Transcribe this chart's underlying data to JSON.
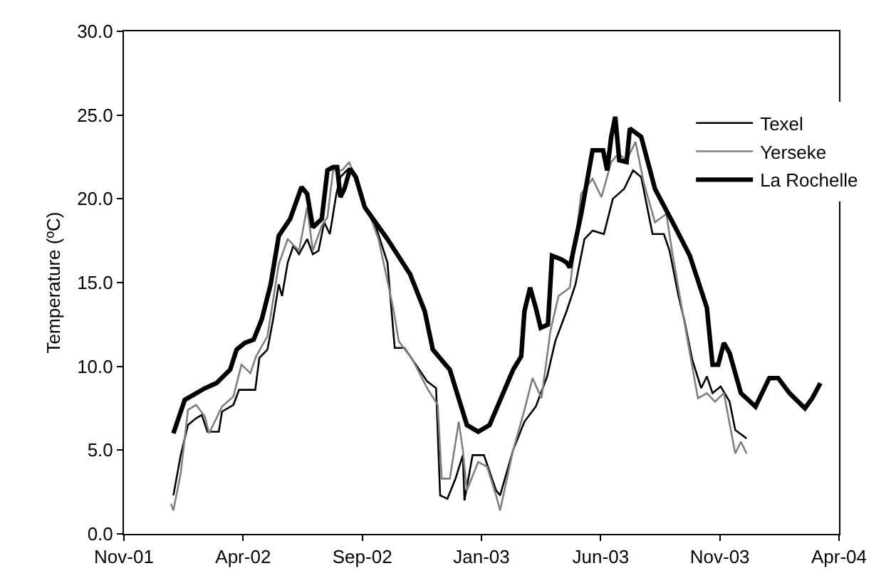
{
  "chart_data": {
    "type": "line",
    "ylabel": "Temperature (ºC)",
    "xlim": [
      "2001-11-12",
      "2004-04-12"
    ],
    "xticks": [
      {
        "value": "2001-11-12",
        "label": "Nov-01"
      },
      {
        "value": "2002-04-08",
        "label": "Apr-02"
      },
      {
        "value": "2002-09-02",
        "label": "Sep-02"
      },
      {
        "value": "2003-01-27",
        "label": "Jan-03"
      },
      {
        "value": "2003-06-23",
        "label": "Jun-03"
      },
      {
        "value": "2003-11-17",
        "label": "Nov-03"
      },
      {
        "value": "2004-04-12",
        "label": "Apr-04"
      }
    ],
    "ylim": [
      0,
      30
    ],
    "yticks": [
      {
        "value": 0,
        "label": "0.0"
      },
      {
        "value": 5,
        "label": "5.0"
      },
      {
        "value": 10,
        "label": "10.0"
      },
      {
        "value": 15,
        "label": "15.0"
      },
      {
        "value": 20,
        "label": "20.0"
      },
      {
        "value": 25,
        "label": "25.0"
      },
      {
        "value": 30,
        "label": "30.0"
      }
    ],
    "grid": false,
    "legend": "top right",
    "marker": "none",
    "line_style": "solid",
    "series": [
      {
        "name": "Texel",
        "color": "#000000",
        "x": [
          "2002-01-12",
          "2002-01-21",
          "2002-01-30",
          "2002-02-09",
          "2002-02-16",
          "2002-02-23",
          "2002-03-09",
          "2002-03-13",
          "2002-03-27",
          "2002-04-03",
          "2002-04-23",
          "2002-04-28",
          "2002-05-08",
          "2002-05-15",
          "2002-05-22",
          "2002-05-26",
          "2002-06-02",
          "2002-06-09",
          "2002-06-16",
          "2002-06-26",
          "2002-07-03",
          "2002-07-10",
          "2002-07-17",
          "2002-07-24",
          "2002-08-01",
          "2002-08-06",
          "2002-08-16",
          "2002-08-25",
          "2002-09-05",
          "2002-09-19",
          "2002-10-03",
          "2002-10-12",
          "2002-10-24",
          "2002-11-07",
          "2002-11-21",
          "2002-12-02",
          "2002-12-07",
          "2002-12-16",
          "2002-12-26",
          "2003-01-04",
          "2003-01-06",
          "2003-01-16",
          "2003-01-30",
          "2003-02-14",
          "2003-02-19",
          "2003-03-07",
          "2003-03-21",
          "2003-04-04",
          "2003-04-18",
          "2003-04-28",
          "2003-05-12",
          "2003-05-23",
          "2003-06-03",
          "2003-06-13",
          "2003-06-27",
          "2003-07-08",
          "2003-07-22",
          "2003-08-02",
          "2003-08-12",
          "2003-08-19",
          "2003-08-26",
          "2003-09-09",
          "2003-09-16",
          "2003-09-27",
          "2003-10-04",
          "2003-10-14",
          "2003-10-25",
          "2003-11-01",
          "2003-11-08",
          "2003-11-18",
          "2003-11-29",
          "2003-12-06",
          "2003-12-20"
        ],
        "values": [
          2.3,
          4.7,
          6.5,
          6.9,
          7.1,
          6.1,
          6.1,
          7.3,
          7.7,
          8.6,
          8.6,
          10.5,
          11.0,
          12.8,
          14.9,
          14.2,
          16.2,
          17.2,
          16.7,
          17.6,
          16.7,
          16.9,
          18.6,
          17.9,
          20.3,
          21.3,
          21.8,
          21.3,
          19.6,
          18.3,
          16.2,
          11.1,
          11.1,
          10.1,
          9.1,
          8.7,
          2.3,
          2.1,
          3.3,
          4.7,
          2.0,
          4.7,
          4.7,
          2.6,
          2.3,
          5.0,
          6.7,
          7.6,
          9.4,
          11.5,
          13.3,
          14.9,
          17.6,
          18.1,
          17.9,
          20.0,
          20.6,
          21.7,
          21.3,
          19.6,
          17.9,
          17.9,
          16.9,
          14.2,
          12.8,
          10.4,
          8.7,
          9.4,
          8.4,
          8.8,
          7.9,
          6.2,
          5.7
        ]
      },
      {
        "name": "Yerseke",
        "color": "#808080",
        "x": [
          "2002-01-09",
          "2002-01-12",
          "2002-01-21",
          "2002-01-30",
          "2002-02-09",
          "2002-02-20",
          "2002-02-25",
          "2002-03-13",
          "2002-03-27",
          "2002-04-06",
          "2002-04-17",
          "2002-04-24",
          "2002-05-08",
          "2002-05-22",
          "2002-06-02",
          "2002-06-16",
          "2002-06-26",
          "2002-07-03",
          "2002-07-14",
          "2002-07-21",
          "2002-07-28",
          "2002-08-08",
          "2002-08-17",
          "2002-08-28",
          "2002-09-12",
          "2002-09-22",
          "2002-10-10",
          "2002-10-17",
          "2002-11-03",
          "2002-11-21",
          "2002-12-04",
          "2002-12-09",
          "2002-12-19",
          "2002-12-30",
          "2003-01-04",
          "2003-01-09",
          "2003-01-23",
          "2003-02-03",
          "2003-02-14",
          "2003-02-19",
          "2003-03-07",
          "2003-03-21",
          "2003-03-31",
          "2003-04-11",
          "2003-04-22",
          "2003-05-02",
          "2003-05-16",
          "2003-05-30",
          "2003-06-13",
          "2003-06-24",
          "2003-07-06",
          "2003-07-15",
          "2003-07-25",
          "2003-08-05",
          "2003-08-15",
          "2003-08-29",
          "2003-09-12",
          "2003-09-19",
          "2003-09-30",
          "2003-10-11",
          "2003-10-21",
          "2003-11-01",
          "2003-11-11",
          "2003-11-22",
          "2003-12-06",
          "2003-12-13",
          "2003-12-20"
        ],
        "values": [
          1.8,
          1.4,
          3.6,
          7.4,
          7.7,
          7.0,
          6.0,
          7.6,
          8.2,
          10.1,
          9.6,
          10.6,
          11.8,
          16.1,
          17.6,
          16.9,
          19.5,
          16.9,
          18.4,
          18.9,
          21.7,
          21.7,
          22.2,
          20.6,
          18.9,
          17.6,
          13.5,
          11.5,
          10.4,
          8.7,
          7.7,
          3.3,
          3.3,
          6.7,
          5.0,
          2.6,
          4.3,
          4.0,
          2.3,
          1.4,
          5.0,
          7.4,
          9.3,
          8.1,
          12.1,
          14.2,
          14.7,
          20.3,
          21.2,
          20.1,
          22.2,
          22.7,
          22.3,
          23.4,
          21.0,
          18.6,
          19.1,
          16.9,
          13.8,
          10.8,
          8.1,
          8.4,
          7.9,
          8.4,
          4.8,
          5.5,
          4.8
        ]
      },
      {
        "name": "La Rochelle",
        "color": "#000000",
        "x": [
          "2002-01-12",
          "2002-01-26",
          "2002-02-20",
          "2002-03-06",
          "2002-03-23",
          "2002-03-31",
          "2002-04-10",
          "2002-04-21",
          "2002-05-01",
          "2002-05-12",
          "2002-05-22",
          "2002-06-05",
          "2002-06-19",
          "2002-06-26",
          "2002-07-03",
          "2002-07-14",
          "2002-07-21",
          "2002-07-28",
          "2002-08-02",
          "2002-08-06",
          "2002-08-11",
          "2002-08-18",
          "2002-08-25",
          "2002-09-05",
          "2002-10-03",
          "2002-10-31",
          "2002-11-18",
          "2002-11-28",
          "2002-12-19",
          "2003-01-09",
          "2003-01-23",
          "2003-02-06",
          "2003-03-07",
          "2003-03-17",
          "2003-03-21",
          "2003-03-28",
          "2003-04-04",
          "2003-04-10",
          "2003-04-19",
          "2003-04-24",
          "2003-05-05",
          "2003-05-12",
          "2003-05-16",
          "2003-05-30",
          "2003-06-13",
          "2003-06-26",
          "2003-07-01",
          "2003-07-06",
          "2003-07-11",
          "2003-07-16",
          "2003-07-25",
          "2003-07-29",
          "2003-08-12",
          "2003-08-29",
          "2003-09-23",
          "2003-10-11",
          "2003-11-01",
          "2003-11-08",
          "2003-11-15",
          "2003-11-22",
          "2003-11-29",
          "2003-12-13",
          "2003-12-31",
          "2004-01-17",
          "2004-01-28",
          "2004-02-11",
          "2004-03-01",
          "2004-03-10",
          "2004-03-20"
        ],
        "values": [
          6.0,
          8.0,
          8.7,
          9.0,
          9.8,
          11.0,
          11.4,
          11.6,
          12.8,
          14.9,
          17.8,
          18.8,
          20.7,
          20.3,
          18.3,
          18.8,
          21.7,
          21.9,
          21.9,
          20.1,
          20.6,
          21.8,
          21.3,
          19.5,
          17.6,
          15.5,
          13.3,
          11.0,
          9.8,
          6.5,
          6.1,
          6.5,
          9.8,
          10.6,
          13.3,
          14.7,
          13.5,
          12.3,
          12.5,
          16.6,
          16.4,
          16.2,
          15.9,
          19.1,
          22.9,
          22.9,
          21.7,
          23.7,
          24.9,
          22.3,
          22.2,
          24.2,
          23.7,
          20.6,
          18.3,
          16.6,
          13.5,
          10.1,
          10.1,
          11.4,
          10.8,
          8.4,
          7.6,
          9.3,
          9.3,
          8.4,
          7.5,
          8.1,
          9.0
        ]
      }
    ]
  }
}
